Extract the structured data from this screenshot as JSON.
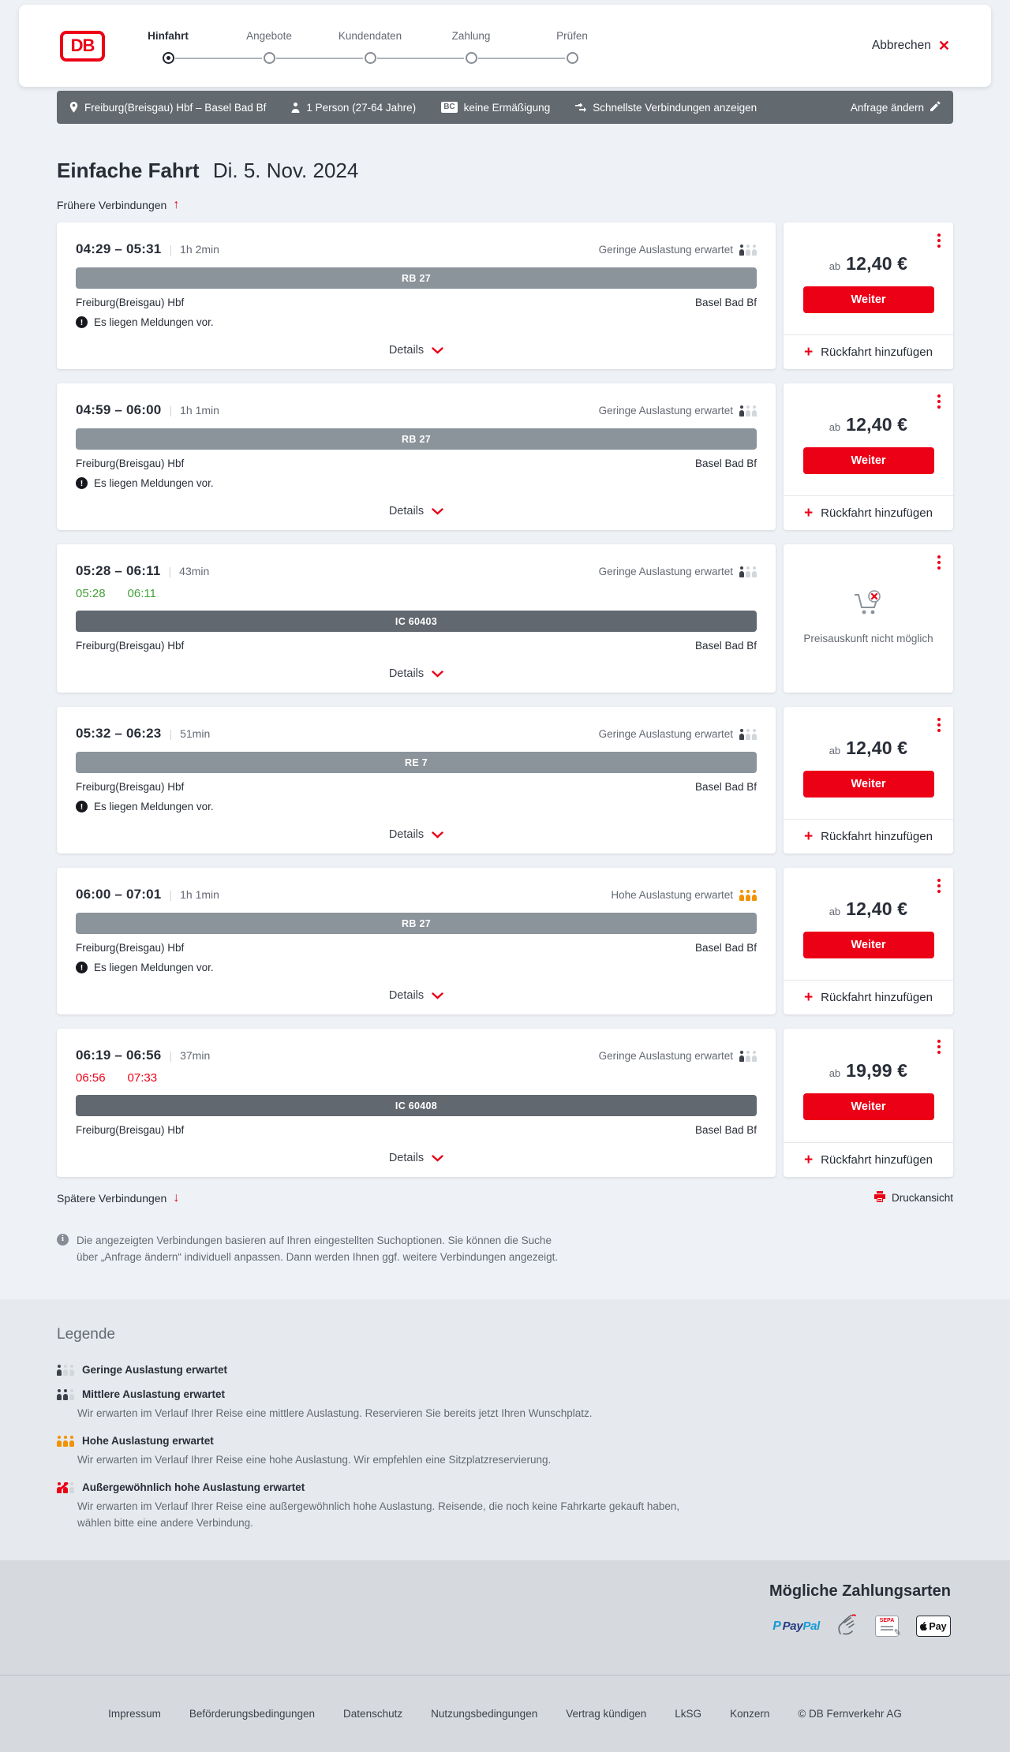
{
  "header": {
    "logo_text": "DB",
    "steps": [
      {
        "label": "Hinfahrt",
        "active": true
      },
      {
        "label": "Angebote",
        "active": false
      },
      {
        "label": "Kundendaten",
        "active": false
      },
      {
        "label": "Zahlung",
        "active": false
      },
      {
        "label": "Prüfen",
        "active": false
      }
    ],
    "cancel_label": "Abbrechen"
  },
  "summary_bar": {
    "route": "Freiburg(Breisgau) Hbf – Basel Bad Bf",
    "passengers": "1 Person (27-64 Jahre)",
    "bc_badge": "BC",
    "discount": "keine Ermäßigung",
    "sort_mode": "Schnellste Verbindungen anzeigen",
    "edit_label": "Anfrage ändern"
  },
  "results": {
    "title": "Einfache Fahrt",
    "date": "Di. 5. Nov. 2024",
    "earlier_label": "Frühere Verbindungen",
    "later_label": "Spätere Verbindungen",
    "print_label": "Druckansicht",
    "details_label": "Details",
    "price_prefix": "ab",
    "continue_label": "Weiter",
    "return_label": "Rückfahrt hinzufügen",
    "no_price_label": "Preisauskunft nicht möglich",
    "notice": "Die angezeigten Verbindungen basieren auf Ihren eingestellten Suchoptionen. Sie können die Suche über „Anfrage ändern“ individuell anpassen. Dann werden Ihnen ggf. weitere Verbindungen angezeigt."
  },
  "connections": [
    {
      "times": "04:29 – 05:31",
      "duration": "1h 2min",
      "occupancy_label": "Geringe Auslastung erwartet",
      "occupancy_level": "low",
      "train": "RB 27",
      "train_style": "light",
      "from": "Freiburg(Breisgau) Hbf",
      "to": "Basel Bad Bf",
      "message": "Es liegen Meldungen vor.",
      "price": "12,40 €",
      "has_price": true,
      "has_return": true
    },
    {
      "times": "04:59 – 06:00",
      "duration": "1h 1min",
      "occupancy_label": "Geringe Auslastung erwartet",
      "occupancy_level": "low",
      "train": "RB 27",
      "train_style": "light",
      "from": "Freiburg(Breisgau) Hbf",
      "to": "Basel Bad Bf",
      "message": "Es liegen Meldungen vor.",
      "price": "12,40 €",
      "has_price": true,
      "has_return": true
    },
    {
      "times": "05:28 – 06:11",
      "duration": "43min",
      "occupancy_label": "Geringe Auslastung erwartet",
      "occupancy_level": "low",
      "realtime": {
        "dep": "05:28",
        "arr": "06:11",
        "status": "ontime"
      },
      "train": "IC 60403",
      "train_style": "dark",
      "from": "Freiburg(Breisgau) Hbf",
      "to": "Basel Bad Bf",
      "message": null,
      "price": null,
      "has_price": false,
      "has_return": false
    },
    {
      "times": "05:32 – 06:23",
      "duration": "51min",
      "occupancy_label": "Geringe Auslastung erwartet",
      "occupancy_level": "low",
      "train": "RE 7",
      "train_style": "light",
      "from": "Freiburg(Breisgau) Hbf",
      "to": "Basel Bad Bf",
      "message": "Es liegen Meldungen vor.",
      "price": "12,40 €",
      "has_price": true,
      "has_return": true
    },
    {
      "times": "06:00 – 07:01",
      "duration": "1h 1min",
      "occupancy_label": "Hohe Auslastung erwartet",
      "occupancy_level": "high",
      "train": "RB 27",
      "train_style": "light",
      "from": "Freiburg(Breisgau) Hbf",
      "to": "Basel Bad Bf",
      "message": "Es liegen Meldungen vor.",
      "price": "12,40 €",
      "has_price": true,
      "has_return": true
    },
    {
      "times": "06:19 – 06:56",
      "duration": "37min",
      "occupancy_label": "Geringe Auslastung erwartet",
      "occupancy_level": "low",
      "realtime": {
        "dep": "06:56",
        "arr": "07:33",
        "status": "delayed"
      },
      "train": "IC 60408",
      "train_style": "dark",
      "from": "Freiburg(Breisgau) Hbf",
      "to": "Basel Bad Bf",
      "message": null,
      "price": "19,99 €",
      "has_price": true,
      "has_return": true
    }
  ],
  "legend": {
    "title": "Legende",
    "items": [
      {
        "level": "low",
        "label": "Geringe Auslastung erwartet",
        "desc": ""
      },
      {
        "level": "mid",
        "label": "Mittlere Auslastung erwartet",
        "desc": "Wir erwarten im Verlauf Ihrer Reise eine mittlere Auslastung. Reservieren Sie bereits jetzt Ihren Wunschplatz."
      },
      {
        "level": "high",
        "label": "Hohe Auslastung erwartet",
        "desc": "Wir erwarten im Verlauf Ihrer Reise eine hohe Auslastung. Wir empfehlen eine Sitzplatzreservierung."
      },
      {
        "level": "exceptional",
        "label": "Außergewöhnlich hohe Auslastung erwartet",
        "desc": "Wir erwarten im Verlauf Ihrer Reise eine außergewöhnlich hohe Auslastung. Reisende, die noch keine Fahrkarte gekauft haben, wählen bitte eine andere Verbindung."
      }
    ]
  },
  "payments": {
    "title": "Mögliche Zahlungsarten",
    "methods": [
      {
        "key": "paypal",
        "name": "PayPal"
      },
      {
        "key": "giropay",
        "name": "giropay"
      },
      {
        "key": "sepa",
        "name": "SEPA-Lastschrift",
        "badge": "SEPA"
      },
      {
        "key": "applepay",
        "name": "Apple Pay",
        "badge": "Pay"
      }
    ]
  },
  "footer": {
    "links": [
      "Impressum",
      "Beförderungsbedingungen",
      "Datenschutz",
      "Nutzungsbedingungen",
      "Vertrag kündigen",
      "LkSG",
      "Konzern"
    ],
    "copyright": "© DB Fernverkehr AG"
  },
  "colors": {
    "brand_red": "#ec0016",
    "ontime_green": "#44a13c",
    "delay_red": "#ec0016",
    "high_occupancy_orange": "#f39200"
  }
}
